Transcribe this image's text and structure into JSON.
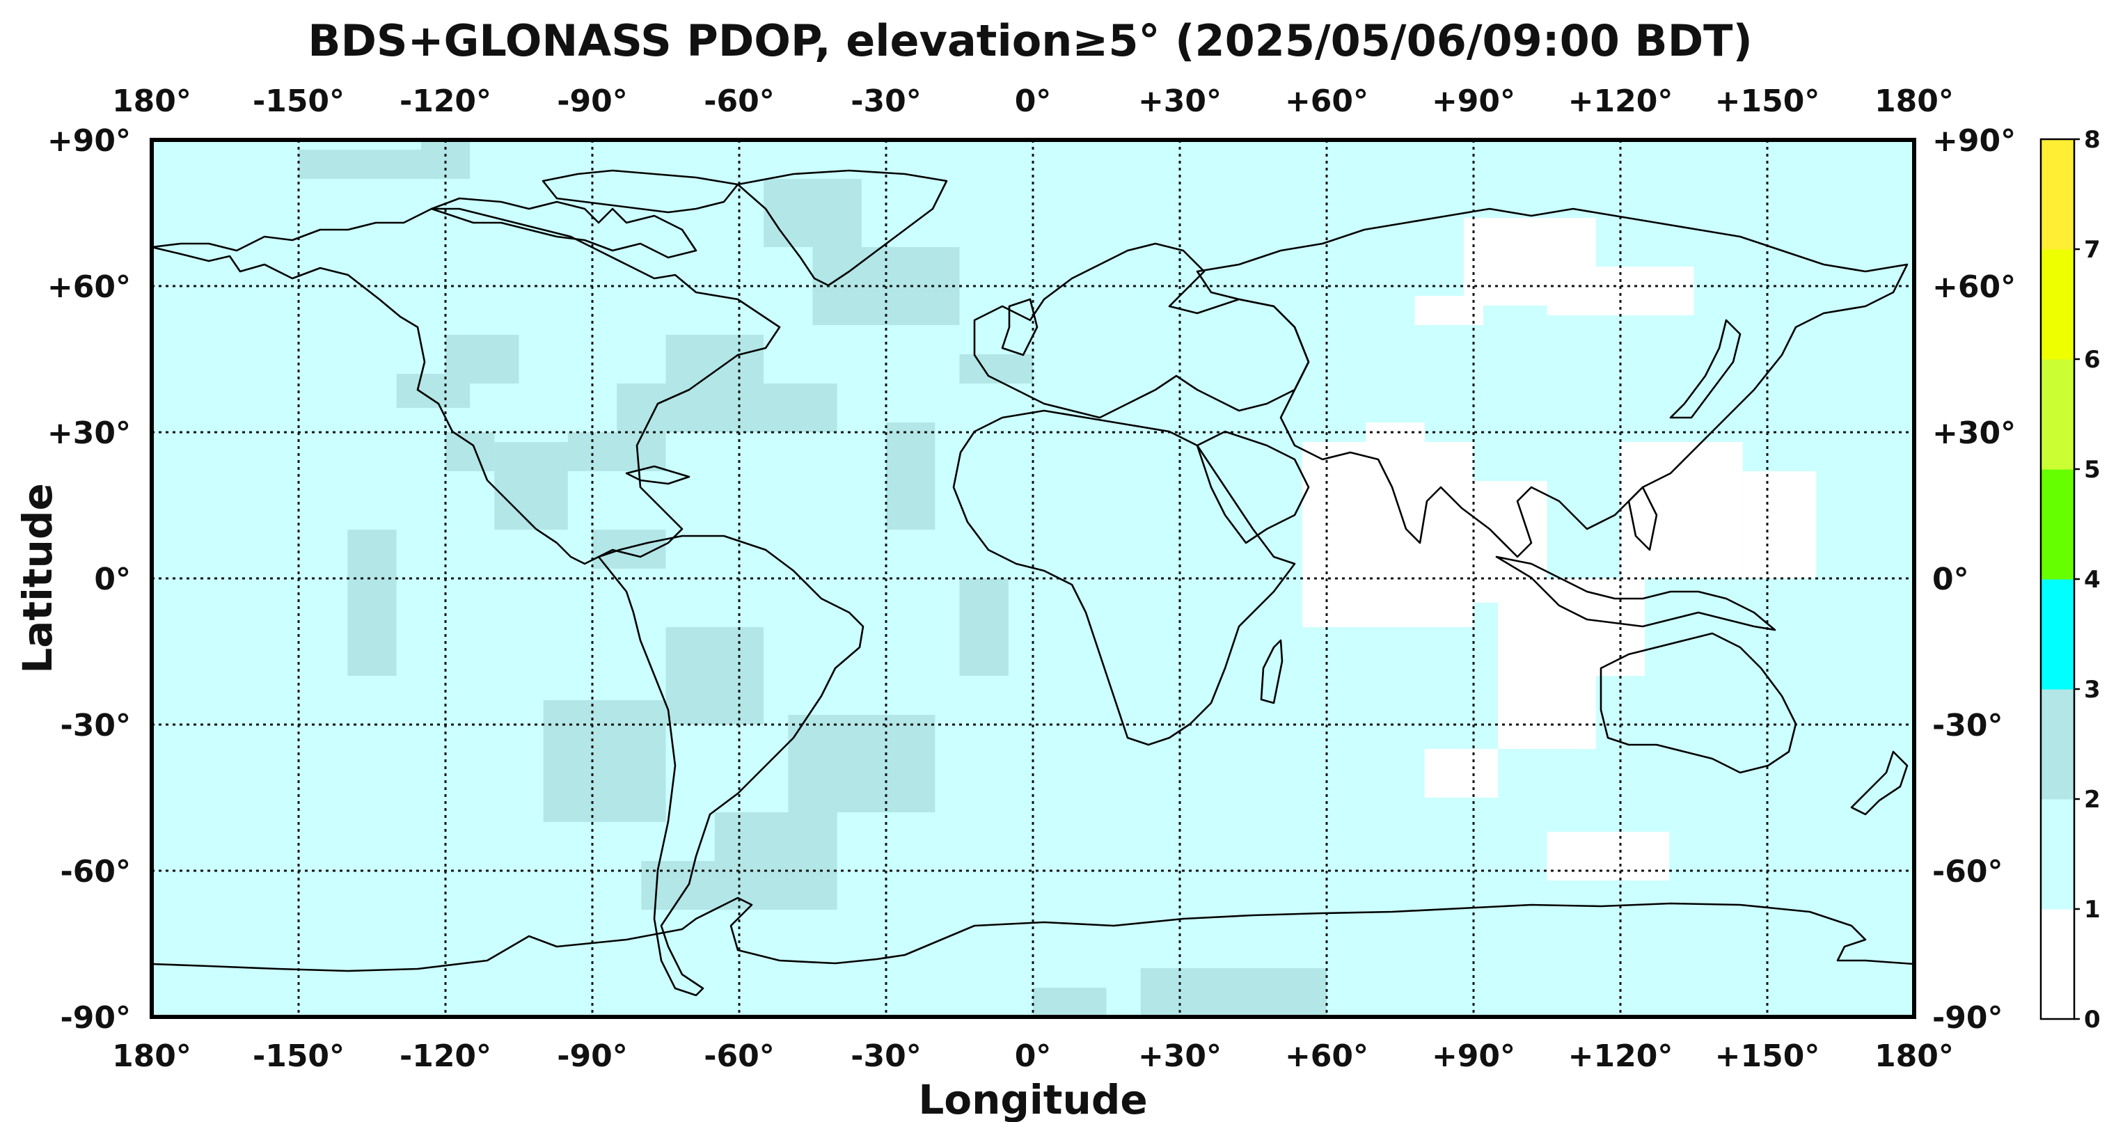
{
  "title": "BDS+GLONASS PDOP, elevation≥5° (2025/05/06/09:00 BDT)",
  "xlabel": "Longitude",
  "ylabel": "Latitude",
  "x_ticks": [
    "180°",
    "-150°",
    "-120°",
    "-90°",
    "-60°",
    "-30°",
    "0°",
    "+30°",
    "+60°",
    "+90°",
    "+120°",
    "+150°",
    "180°"
  ],
  "y_ticks": [
    "+90°",
    "+60°",
    "+30°",
    "0°",
    "-30°",
    "-60°",
    "-90°"
  ],
  "colorbar": {
    "ticks": [
      "0",
      "1",
      "2",
      "3",
      "4",
      "5",
      "6",
      "7",
      "8"
    ],
    "colors": [
      "#ffffff",
      "#ccffff",
      "#b3e6e6",
      "#00ffff",
      "#66ff00",
      "#ccff33",
      "#eeff00",
      "#ffee33"
    ]
  },
  "colors": {
    "pdop_1_2": "#ccffff",
    "pdop_2_3": "#b3e6e6",
    "pdop_0_1": "#ffffff"
  },
  "chart_data": {
    "type": "heatmap",
    "title": "BDS+GLONASS PDOP, elevation≥5° (2025/05/06/09:00 BDT)",
    "xlabel": "Longitude",
    "ylabel": "Latitude",
    "xlim": [
      -180,
      180
    ],
    "ylim": [
      -90,
      90
    ],
    "grid": true,
    "colorbar_range": [
      0,
      8
    ],
    "regions": [
      {
        "level": "2-3",
        "lon": [
          -150,
          -125
        ],
        "lat": [
          82,
          88
        ]
      },
      {
        "level": "2-3",
        "lon": [
          -125,
          -115
        ],
        "lat": [
          82,
          90
        ]
      },
      {
        "level": "2-3",
        "lon": [
          -55,
          -35
        ],
        "lat": [
          68,
          82
        ]
      },
      {
        "level": "2-3",
        "lon": [
          -45,
          -15
        ],
        "lat": [
          52,
          68
        ]
      },
      {
        "level": "2-3",
        "lon": [
          -120,
          -105
        ],
        "lat": [
          40,
          50
        ]
      },
      {
        "level": "2-3",
        "lon": [
          -130,
          -115
        ],
        "lat": [
          35,
          42
        ]
      },
      {
        "level": "2-3",
        "lon": [
          -85,
          -40
        ],
        "lat": [
          30,
          40
        ]
      },
      {
        "level": "2-3",
        "lon": [
          -75,
          -55
        ],
        "lat": [
          38,
          50
        ]
      },
      {
        "level": "2-3",
        "lon": [
          -15,
          0
        ],
        "lat": [
          40,
          46
        ]
      },
      {
        "level": "2-3",
        "lon": [
          -110,
          -95
        ],
        "lat": [
          10,
          28
        ]
      },
      {
        "level": "2-3",
        "lon": [
          -120,
          -110
        ],
        "lat": [
          22,
          30
        ]
      },
      {
        "level": "2-3",
        "lon": [
          -95,
          -75
        ],
        "lat": [
          22,
          30
        ]
      },
      {
        "level": "2-3",
        "lon": [
          -30,
          -20
        ],
        "lat": [
          10,
          32
        ]
      },
      {
        "level": "2-3",
        "lon": [
          -140,
          -130
        ],
        "lat": [
          -20,
          10
        ]
      },
      {
        "level": "2-3",
        "lon": [
          -90,
          -75
        ],
        "lat": [
          2,
          10
        ]
      },
      {
        "level": "2-3",
        "lon": [
          -15,
          -5
        ],
        "lat": [
          -20,
          0
        ]
      },
      {
        "level": "2-3",
        "lon": [
          -100,
          -75
        ],
        "lat": [
          -50,
          -25
        ]
      },
      {
        "level": "2-3",
        "lon": [
          -75,
          -55
        ],
        "lat": [
          -30,
          -10
        ]
      },
      {
        "level": "2-3",
        "lon": [
          -50,
          -20
        ],
        "lat": [
          -48,
          -28
        ]
      },
      {
        "level": "2-3",
        "lon": [
          -65,
          -40
        ],
        "lat": [
          -58,
          -48
        ]
      },
      {
        "level": "2-3",
        "lon": [
          -80,
          -40
        ],
        "lat": [
          -68,
          -58
        ]
      },
      {
        "level": "2-3",
        "lon": [
          0,
          15
        ],
        "lat": [
          -90,
          -84
        ]
      },
      {
        "level": "2-3",
        "lon": [
          22,
          60
        ],
        "lat": [
          -90,
          -80
        ]
      },
      {
        "level": "0-1",
        "lon": [
          88,
          115
        ],
        "lat": [
          56,
          74
        ]
      },
      {
        "level": "0-1",
        "lon": [
          78,
          92
        ],
        "lat": [
          52,
          58
        ]
      },
      {
        "level": "0-1",
        "lon": [
          105,
          135
        ],
        "lat": [
          54,
          64
        ]
      },
      {
        "level": "0-1",
        "lon": [
          68,
          80
        ],
        "lat": [
          25,
          32
        ]
      },
      {
        "level": "0-1",
        "lon": [
          55,
          90
        ],
        "lat": [
          -10,
          28
        ]
      },
      {
        "level": "0-1",
        "lon": [
          90,
          105
        ],
        "lat": [
          -5,
          20
        ]
      },
      {
        "level": "0-1",
        "lon": [
          95,
          115
        ],
        "lat": [
          -35,
          -5
        ]
      },
      {
        "level": "0-1",
        "lon": [
          80,
          95
        ],
        "lat": [
          -45,
          -35
        ]
      },
      {
        "level": "0-1",
        "lon": [
          120,
          145
        ],
        "lat": [
          0,
          28
        ]
      },
      {
        "level": "0-1",
        "lon": [
          145,
          160
        ],
        "lat": [
          0,
          22
        ]
      },
      {
        "level": "0-1",
        "lon": [
          105,
          125
        ],
        "lat": [
          -20,
          0
        ]
      },
      {
        "level": "0-1",
        "lon": [
          105,
          130
        ],
        "lat": [
          -62,
          -52
        ]
      }
    ]
  }
}
